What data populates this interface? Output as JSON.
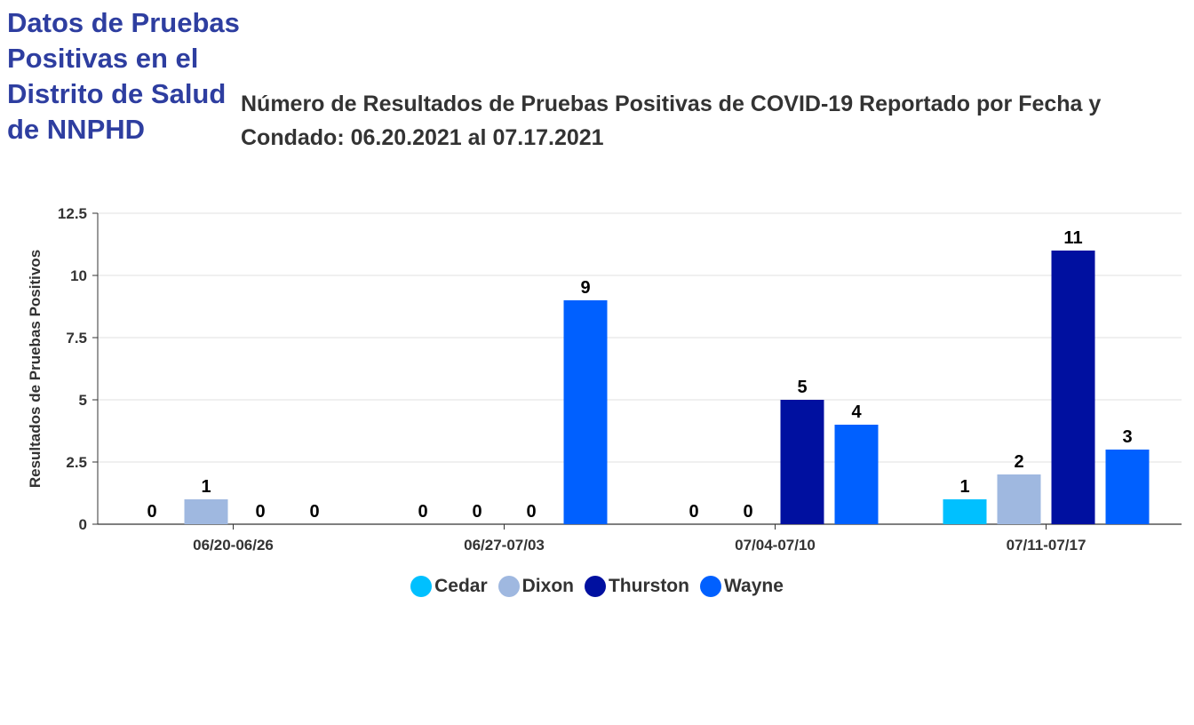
{
  "side_title": "Datos de Pruebas Positivas en el Distrito de Salud de NNPHD",
  "chart_data": {
    "type": "bar",
    "title": "Número de Resultados de Pruebas Positivas de COVID-19 Reportado por Fecha y Condado: 06.20.2021 al 07.17.2021",
    "xlabel": "",
    "ylabel": "Resultados de Pruebas Positivos",
    "categories": [
      "06/20-06/26",
      "06/27-07/03",
      "07/04-07/10",
      "07/11-07/17"
    ],
    "series": [
      {
        "name": "Cedar",
        "color": "#00c0ff",
        "values": [
          0,
          0,
          0,
          1
        ]
      },
      {
        "name": "Dixon",
        "color": "#9fb8e0",
        "values": [
          1,
          0,
          0,
          2
        ]
      },
      {
        "name": "Thurston",
        "color": "#0010a0",
        "values": [
          0,
          0,
          5,
          11
        ]
      },
      {
        "name": "Wayne",
        "color": "#0060ff",
        "values": [
          0,
          9,
          4,
          3
        ]
      }
    ],
    "ylim": [
      0,
      12.5
    ],
    "yticks": [
      "0",
      "2.5",
      "5",
      "7.5",
      "10",
      "12.5"
    ],
    "grid": true,
    "legend": "bottom-center"
  }
}
